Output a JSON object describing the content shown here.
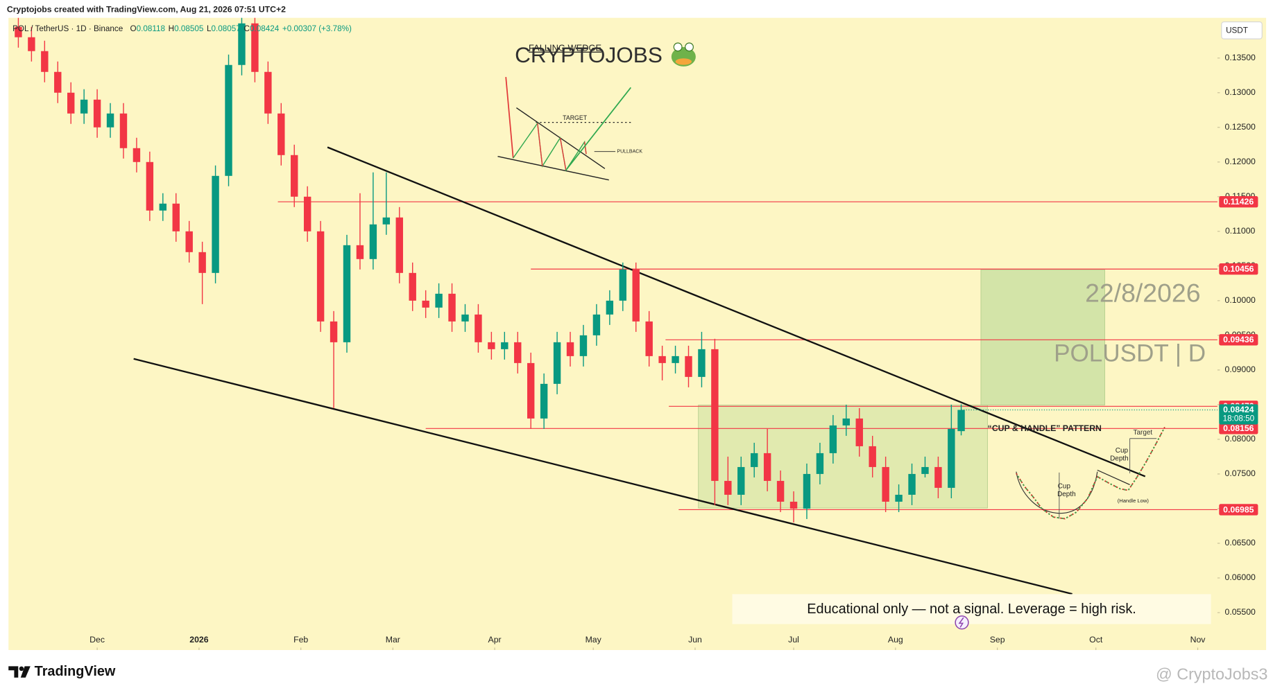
{
  "header": {
    "credit": "Cryptojobs created with TradingView.com, Aug 21, 2026 07:51 UTC+2",
    "symbol": "POL / TetherUS · 1D · Binance",
    "ohlc_letters": [
      "O",
      "H",
      "L",
      "C"
    ],
    "change": "+0.00307 (+3.78%)",
    "currency_button": "USDT"
  },
  "chart_data": {
    "type": "candlestick",
    "x": [
      -24,
      -20,
      -16,
      -12,
      -8,
      -4,
      0,
      4,
      8,
      12,
      16,
      20,
      24,
      28,
      32,
      36,
      40,
      44,
      48,
      52,
      56,
      60,
      64,
      68,
      72,
      76,
      80,
      84,
      88,
      92,
      96,
      100,
      104,
      108,
      112,
      116,
      120,
      124,
      128,
      132,
      136,
      140,
      144,
      148,
      152,
      156,
      160,
      164,
      168,
      172,
      176,
      180,
      184,
      188,
      192,
      196,
      200,
      204,
      208,
      212,
      216,
      220,
      224,
      228,
      232,
      236,
      240,
      244,
      248,
      252,
      256,
      260,
      263
    ],
    "open": [
      0.1395,
      0.138,
      0.136,
      0.133,
      0.13,
      0.127,
      0.129,
      0.125,
      0.127,
      0.122,
      0.12,
      0.113,
      0.114,
      0.11,
      0.107,
      0.104,
      0.118,
      0.134,
      0.14,
      0.133,
      0.127,
      0.121,
      0.115,
      0.11,
      0.097,
      0.094,
      0.108,
      0.106,
      0.111,
      0.112,
      0.104,
      0.1,
      0.099,
      0.101,
      0.097,
      0.098,
      0.094,
      0.093,
      0.094,
      0.091,
      0.083,
      0.088,
      0.094,
      0.092,
      0.095,
      0.098,
      0.1,
      0.1045,
      0.097,
      0.092,
      0.091,
      0.092,
      0.089,
      0.093,
      0.074,
      0.072,
      0.076,
      0.078,
      0.074,
      0.071,
      0.07,
      0.075,
      0.078,
      0.082,
      0.083,
      0.079,
      0.076,
      0.071,
      0.072,
      0.075,
      0.076,
      0.073,
      0.08118
    ],
    "high": [
      0.141,
      0.1395,
      0.1375,
      0.1345,
      0.1315,
      0.1305,
      0.1305,
      0.1285,
      0.1285,
      0.1235,
      0.1215,
      0.1155,
      0.1155,
      0.1115,
      0.1085,
      0.1195,
      0.1355,
      0.1415,
      0.1415,
      0.1345,
      0.1285,
      0.1225,
      0.1165,
      0.1115,
      0.0985,
      0.1095,
      0.1155,
      0.1185,
      0.1185,
      0.1135,
      0.1055,
      0.1015,
      0.1025,
      0.1025,
      0.0995,
      0.0995,
      0.0955,
      0.0955,
      0.0955,
      0.0925,
      0.0895,
      0.0955,
      0.0955,
      0.0965,
      0.0995,
      0.1015,
      0.1055,
      0.1055,
      0.0985,
      0.0935,
      0.0935,
      0.0935,
      0.0955,
      0.0945,
      0.0775,
      0.0775,
      0.0795,
      0.0815,
      0.0755,
      0.0725,
      0.0765,
      0.0795,
      0.0835,
      0.085,
      0.0845,
      0.0805,
      0.0775,
      0.0735,
      0.0765,
      0.0775,
      0.0775,
      0.085,
      0.08505
    ],
    "low": [
      0.1365,
      0.1345,
      0.1315,
      0.1285,
      0.1255,
      0.1255,
      0.1235,
      0.1235,
      0.1205,
      0.1185,
      0.1115,
      0.1115,
      0.1085,
      0.1055,
      0.0995,
      0.1025,
      0.1165,
      0.1325,
      0.1315,
      0.1255,
      0.1195,
      0.1135,
      0.1085,
      0.0955,
      0.0845,
      0.0925,
      0.1045,
      0.1045,
      0.1095,
      0.1025,
      0.0985,
      0.0975,
      0.0975,
      0.0955,
      0.0955,
      0.0925,
      0.0915,
      0.0915,
      0.0895,
      0.0815,
      0.0815,
      0.0865,
      0.0905,
      0.0905,
      0.0935,
      0.0965,
      0.0985,
      0.0955,
      0.0905,
      0.0885,
      0.0895,
      0.0875,
      0.0875,
      0.0705,
      0.0705,
      0.0705,
      0.0745,
      0.0725,
      0.0695,
      0.068,
      0.0685,
      0.0735,
      0.0765,
      0.0805,
      0.0775,
      0.0745,
      0.0695,
      0.0695,
      0.0705,
      0.0745,
      0.0715,
      0.0715,
      0.08057
    ],
    "close": [
      0.138,
      0.136,
      0.133,
      0.13,
      0.127,
      0.129,
      0.125,
      0.127,
      0.122,
      0.12,
      0.113,
      0.114,
      0.11,
      0.107,
      0.104,
      0.118,
      0.134,
      0.14,
      0.133,
      0.127,
      0.121,
      0.115,
      0.11,
      0.097,
      0.094,
      0.108,
      0.106,
      0.111,
      0.112,
      0.104,
      0.1,
      0.099,
      0.101,
      0.097,
      0.098,
      0.094,
      0.093,
      0.094,
      0.091,
      0.083,
      0.088,
      0.094,
      0.092,
      0.095,
      0.098,
      0.1,
      0.1045,
      0.097,
      0.092,
      0.091,
      0.092,
      0.089,
      0.093,
      0.074,
      0.072,
      0.076,
      0.078,
      0.074,
      0.071,
      0.07,
      0.075,
      0.078,
      0.082,
      0.083,
      0.079,
      0.076,
      0.071,
      0.072,
      0.075,
      0.076,
      0.073,
      0.0815,
      0.08424
    ],
    "up_color": "#089981",
    "down_color": "#f23645",
    "xlim": [
      -27,
      341
    ],
    "xticks": [
      {
        "value": 0,
        "label": "Dec"
      },
      {
        "value": 31,
        "label": "2026"
      },
      {
        "value": 62,
        "label": "Feb"
      },
      {
        "value": 90,
        "label": "Mar"
      },
      {
        "value": 121,
        "label": "Apr"
      },
      {
        "value": 151,
        "label": "May"
      },
      {
        "value": 182,
        "label": "Jun"
      },
      {
        "value": 212,
        "label": "Jul"
      },
      {
        "value": 243,
        "label": "Aug"
      },
      {
        "value": 274,
        "label": "Sep"
      },
      {
        "value": 304,
        "label": "Oct"
      },
      {
        "value": 335,
        "label": "Nov"
      }
    ],
    "ylim": [
      0.0496,
      0.1408
    ],
    "yticks": [
      {
        "value": 0.135,
        "label": "0.13500"
      },
      {
        "value": 0.13,
        "label": "0.13000"
      },
      {
        "value": 0.125,
        "label": "0.12500"
      },
      {
        "value": 0.12,
        "label": "0.12000"
      },
      {
        "value": 0.115,
        "label": "0.11500"
      },
      {
        "value": 0.11,
        "label": "0.11000"
      },
      {
        "value": 0.105,
        "label": "0.10500"
      },
      {
        "value": 0.1,
        "label": "0.10000"
      },
      {
        "value": 0.095,
        "label": "0.09500"
      },
      {
        "value": 0.09,
        "label": "0.09000"
      },
      {
        "value": 0.085,
        "label": "0.08500"
      },
      {
        "value": 0.08,
        "label": "0.08000"
      },
      {
        "value": 0.075,
        "label": "0.07500"
      },
      {
        "value": 0.07,
        "label": "0.07000"
      },
      {
        "value": 0.065,
        "label": "0.06500"
      },
      {
        "value": 0.06,
        "label": "0.06000"
      },
      {
        "value": 0.055,
        "label": "0.05500"
      }
    ],
    "grid": false,
    "levels": [
      {
        "value": 0.11426,
        "from": 55
      },
      {
        "value": 0.10456,
        "from": 132
      },
      {
        "value": 0.09436,
        "from": 173
      },
      {
        "value": 0.08476,
        "from": 174
      },
      {
        "value": 0.08156,
        "from": 100
      },
      {
        "value": 0.06985,
        "from": 177
      }
    ],
    "level_color": "#f23645",
    "countdown": "18:08:50",
    "trendlines": [
      {
        "x": [
          70.1,
          319
        ],
        "y": [
          0.12213,
          0.07465
        ]
      },
      {
        "x": [
          11.1,
          296.8
        ],
        "y": [
          0.09161,
          0.05769
        ]
      }
    ],
    "zones": [
      {
        "x": [
          183,
          271
        ],
        "y": [
          0.07009,
          0.08494
        ],
        "color": "rgba(190,220,150,0.45)"
      },
      {
        "x": [
          269,
          306.7
        ],
        "y": [
          0.08494,
          0.10447
        ],
        "color": "rgba(170,210,140,0.5)"
      }
    ]
  },
  "annotations": {
    "brand": "CRYPTOJOBS",
    "wedge_title": "FALLING WEDGE",
    "wedge_target": "TARGET",
    "wedge_pullback": "PULLBACK",
    "date_stamp": "22/8/2026",
    "ticker_stamp": "POLUSDT | D",
    "pattern": "“CUP & HANDLE” PATTERN",
    "cup_depth_a": [
      "Cup",
      "Depth"
    ],
    "cup_depth_b": [
      "Cup",
      "Depth"
    ],
    "cup_target": "Target",
    "handle_low": "(Handle Low)",
    "disclaimer": "Educational only — not a signal. Leverage  = high risk."
  },
  "footer": {
    "logo": "TradingView",
    "watermark": "@ CryptoJobs3"
  }
}
